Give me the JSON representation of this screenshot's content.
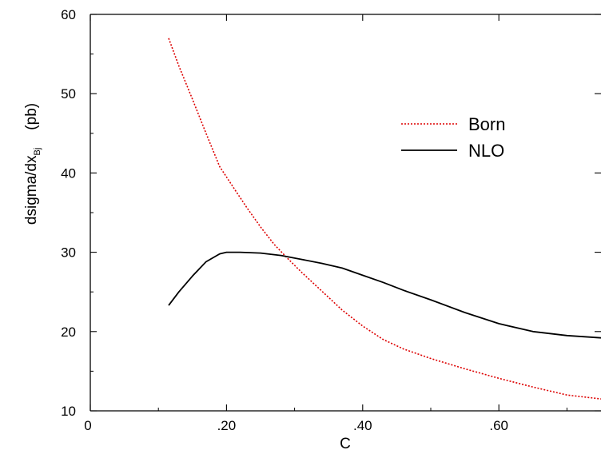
{
  "chart_data": {
    "type": "line",
    "xlabel": "C",
    "ylabel": "dsigma/dx",
    "ylabel_subscript": "Bj",
    "ylabel_unit": "(pb)",
    "xlim": [
      0,
      0.75
    ],
    "ylim": [
      10,
      60
    ],
    "xticks": [
      {
        "value": 0.0,
        "label": "0"
      },
      {
        "value": 0.2,
        "label": ".20"
      },
      {
        "value": 0.4,
        "label": ".40"
      },
      {
        "value": 0.6,
        "label": ".60"
      }
    ],
    "yticks": [
      {
        "value": 10,
        "label": "10"
      },
      {
        "value": 20,
        "label": "20"
      },
      {
        "value": 30,
        "label": "30"
      },
      {
        "value": 40,
        "label": "40"
      },
      {
        "value": 50,
        "label": "50"
      },
      {
        "value": 60,
        "label": "60"
      }
    ],
    "grid": false,
    "legend_position": "top-right",
    "series": [
      {
        "name": "Born",
        "color": "#dd0000",
        "dash": "dotted",
        "x": [
          0.115,
          0.13,
          0.15,
          0.17,
          0.19,
          0.21,
          0.23,
          0.25,
          0.27,
          0.29,
          0.31,
          0.33,
          0.35,
          0.37,
          0.4,
          0.43,
          0.46,
          0.5,
          0.55,
          0.6,
          0.65,
          0.7,
          0.75
        ],
        "values": [
          57.0,
          53.5,
          49.3,
          45.0,
          40.8,
          38.2,
          35.6,
          33.2,
          31.0,
          29.2,
          27.5,
          25.9,
          24.3,
          22.7,
          20.7,
          19.0,
          17.8,
          16.6,
          15.3,
          14.1,
          13.0,
          12.0,
          11.5
        ]
      },
      {
        "name": "NLO",
        "color": "#000000",
        "dash": "solid",
        "x": [
          0.115,
          0.13,
          0.15,
          0.17,
          0.19,
          0.2,
          0.22,
          0.25,
          0.28,
          0.31,
          0.34,
          0.37,
          0.4,
          0.43,
          0.46,
          0.5,
          0.55,
          0.6,
          0.65,
          0.7,
          0.75
        ],
        "values": [
          23.3,
          25.0,
          27.0,
          28.8,
          29.8,
          30.0,
          30.0,
          29.9,
          29.6,
          29.1,
          28.6,
          28.0,
          27.1,
          26.2,
          25.2,
          24.0,
          22.4,
          21.0,
          20.0,
          19.5,
          19.2
        ]
      }
    ]
  }
}
